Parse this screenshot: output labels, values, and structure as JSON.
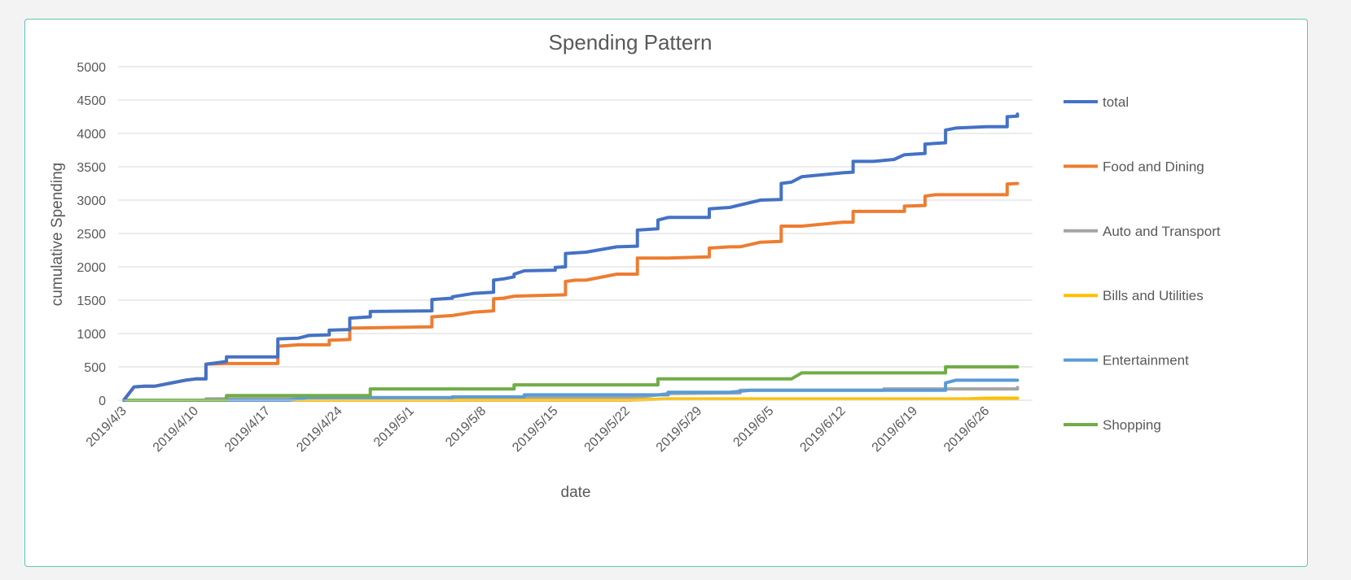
{
  "chart_data": {
    "type": "line",
    "title": "Spending Pattern",
    "xlabel": "date",
    "ylabel": "cumulative Spending",
    "ylim": [
      0,
      5000
    ],
    "yticks": [
      0,
      500,
      1000,
      1500,
      2000,
      2500,
      3000,
      3500,
      4000,
      4500,
      5000
    ],
    "x_axis_type": "date",
    "xlim": [
      "2019-04-03",
      "2019-06-30"
    ],
    "xtick_dates": [
      "2019-04-03",
      "2019-04-10",
      "2019-04-17",
      "2019-04-24",
      "2019-05-01",
      "2019-05-08",
      "2019-05-15",
      "2019-05-22",
      "2019-05-29",
      "2019-06-05",
      "2019-06-12",
      "2019-06-19",
      "2019-06-26"
    ],
    "xtick_labels": [
      "2019/4/3",
      "2019/4/10",
      "2019/4/17",
      "2019/4/24",
      "2019/5/1",
      "2019/5/8",
      "2019/5/15",
      "2019/5/22",
      "2019/5/29",
      "2019/6/5",
      "2019/6/12",
      "2019/6/19",
      "2019/6/26"
    ],
    "grid": "horizontal",
    "legend_position": "right",
    "series": [
      {
        "name": "total",
        "color": "#4472c4",
        "points": [
          [
            "2019-04-03",
            0
          ],
          [
            "2019-04-04",
            200
          ],
          [
            "2019-04-05",
            210
          ],
          [
            "2019-04-06",
            210
          ],
          [
            "2019-04-08",
            270
          ],
          [
            "2019-04-09",
            300
          ],
          [
            "2019-04-10",
            320
          ],
          [
            "2019-04-11",
            320
          ],
          [
            "2019-04-11",
            540
          ],
          [
            "2019-04-12",
            560
          ],
          [
            "2019-04-13",
            580
          ],
          [
            "2019-04-13",
            650
          ],
          [
            "2019-04-18",
            650
          ],
          [
            "2019-04-18",
            920
          ],
          [
            "2019-04-20",
            930
          ],
          [
            "2019-04-21",
            970
          ],
          [
            "2019-04-23",
            980
          ],
          [
            "2019-04-23",
            1050
          ],
          [
            "2019-04-25",
            1060
          ],
          [
            "2019-04-25",
            1230
          ],
          [
            "2019-04-27",
            1250
          ],
          [
            "2019-04-27",
            1330
          ],
          [
            "2019-05-03",
            1340
          ],
          [
            "2019-05-03",
            1510
          ],
          [
            "2019-05-05",
            1530
          ],
          [
            "2019-05-05",
            1550
          ],
          [
            "2019-05-07",
            1600
          ],
          [
            "2019-05-09",
            1620
          ],
          [
            "2019-05-09",
            1800
          ],
          [
            "2019-05-10",
            1820
          ],
          [
            "2019-05-11",
            1850
          ],
          [
            "2019-05-11",
            1890
          ],
          [
            "2019-05-12",
            1940
          ],
          [
            "2019-05-15",
            1950
          ],
          [
            "2019-05-15",
            1990
          ],
          [
            "2019-05-16",
            2000
          ],
          [
            "2019-05-16",
            2200
          ],
          [
            "2019-05-18",
            2220
          ],
          [
            "2019-05-21",
            2300
          ],
          [
            "2019-05-23",
            2310
          ],
          [
            "2019-05-23",
            2550
          ],
          [
            "2019-05-25",
            2570
          ],
          [
            "2019-05-25",
            2700
          ],
          [
            "2019-05-26",
            2740
          ],
          [
            "2019-05-30",
            2740
          ],
          [
            "2019-05-30",
            2870
          ],
          [
            "2019-06-01",
            2890
          ],
          [
            "2019-06-04",
            3000
          ],
          [
            "2019-06-06",
            3010
          ],
          [
            "2019-06-06",
            3250
          ],
          [
            "2019-06-07",
            3270
          ],
          [
            "2019-06-08",
            3350
          ],
          [
            "2019-06-12",
            3410
          ],
          [
            "2019-06-13",
            3420
          ],
          [
            "2019-06-13",
            3580
          ],
          [
            "2019-06-15",
            3580
          ],
          [
            "2019-06-17",
            3610
          ],
          [
            "2019-06-18",
            3680
          ],
          [
            "2019-06-20",
            3700
          ],
          [
            "2019-06-20",
            3840
          ],
          [
            "2019-06-22",
            3860
          ],
          [
            "2019-06-22",
            4050
          ],
          [
            "2019-06-23",
            4080
          ],
          [
            "2019-06-26",
            4100
          ],
          [
            "2019-06-28",
            4100
          ],
          [
            "2019-06-28",
            4250
          ],
          [
            "2019-06-29",
            4260
          ],
          [
            "2019-06-29",
            4290
          ]
        ]
      },
      {
        "name": "Food and Dining",
        "color": "#ed7d31",
        "points": [
          [
            "2019-04-03",
            0
          ],
          [
            "2019-04-04",
            200
          ],
          [
            "2019-04-05",
            210
          ],
          [
            "2019-04-06",
            210
          ],
          [
            "2019-04-08",
            270
          ],
          [
            "2019-04-09",
            300
          ],
          [
            "2019-04-10",
            320
          ],
          [
            "2019-04-11",
            320
          ],
          [
            "2019-04-11",
            540
          ],
          [
            "2019-04-13",
            550
          ],
          [
            "2019-04-18",
            550
          ],
          [
            "2019-04-18",
            810
          ],
          [
            "2019-04-20",
            830
          ],
          [
            "2019-04-23",
            830
          ],
          [
            "2019-04-23",
            900
          ],
          [
            "2019-04-25",
            910
          ],
          [
            "2019-04-25",
            1080
          ],
          [
            "2019-05-03",
            1100
          ],
          [
            "2019-05-03",
            1250
          ],
          [
            "2019-05-05",
            1270
          ],
          [
            "2019-05-07",
            1320
          ],
          [
            "2019-05-09",
            1340
          ],
          [
            "2019-05-09",
            1520
          ],
          [
            "2019-05-10",
            1530
          ],
          [
            "2019-05-11",
            1560
          ],
          [
            "2019-05-16",
            1580
          ],
          [
            "2019-05-16",
            1780
          ],
          [
            "2019-05-17",
            1800
          ],
          [
            "2019-05-18",
            1800
          ],
          [
            "2019-05-21",
            1890
          ],
          [
            "2019-05-23",
            1890
          ],
          [
            "2019-05-23",
            2130
          ],
          [
            "2019-05-26",
            2130
          ],
          [
            "2019-05-30",
            2150
          ],
          [
            "2019-05-30",
            2280
          ],
          [
            "2019-06-01",
            2300
          ],
          [
            "2019-06-02",
            2300
          ],
          [
            "2019-06-04",
            2370
          ],
          [
            "2019-06-06",
            2380
          ],
          [
            "2019-06-06",
            2610
          ],
          [
            "2019-06-08",
            2610
          ],
          [
            "2019-06-12",
            2670
          ],
          [
            "2019-06-13",
            2670
          ],
          [
            "2019-06-13",
            2830
          ],
          [
            "2019-06-18",
            2830
          ],
          [
            "2019-06-18",
            2910
          ],
          [
            "2019-06-20",
            2920
          ],
          [
            "2019-06-20",
            3060
          ],
          [
            "2019-06-21",
            3080
          ],
          [
            "2019-06-28",
            3080
          ],
          [
            "2019-06-28",
            3240
          ],
          [
            "2019-06-29",
            3250
          ]
        ]
      },
      {
        "name": "Auto and Transport",
        "color": "#a5a5a5",
        "points": [
          [
            "2019-04-03",
            0
          ],
          [
            "2019-04-11",
            0
          ],
          [
            "2019-04-11",
            20
          ],
          [
            "2019-04-20",
            30
          ],
          [
            "2019-05-23",
            40
          ],
          [
            "2019-05-26",
            100
          ],
          [
            "2019-06-02",
            110
          ],
          [
            "2019-06-02",
            150
          ],
          [
            "2019-06-16",
            150
          ],
          [
            "2019-06-16",
            170
          ],
          [
            "2019-06-29",
            170
          ],
          [
            "2019-06-29",
            190
          ]
        ]
      },
      {
        "name": "Bills and Utilities",
        "color": "#ffc000",
        "points": [
          [
            "2019-04-03",
            0
          ],
          [
            "2019-04-23",
            0
          ],
          [
            "2019-05-22",
            0
          ],
          [
            "2019-05-26",
            20
          ],
          [
            "2019-06-24",
            20
          ],
          [
            "2019-06-26",
            30
          ],
          [
            "2019-06-29",
            30
          ]
        ]
      },
      {
        "name": "Entertainment",
        "color": "#5b9bd5",
        "points": [
          [
            "2019-04-03",
            0
          ],
          [
            "2019-04-19",
            0
          ],
          [
            "2019-04-21",
            40
          ],
          [
            "2019-05-05",
            40
          ],
          [
            "2019-05-05",
            50
          ],
          [
            "2019-05-12",
            50
          ],
          [
            "2019-05-12",
            80
          ],
          [
            "2019-05-26",
            80
          ],
          [
            "2019-05-26",
            120
          ],
          [
            "2019-06-01",
            120
          ],
          [
            "2019-06-03",
            150
          ],
          [
            "2019-06-22",
            150
          ],
          [
            "2019-06-22",
            260
          ],
          [
            "2019-06-23",
            300
          ],
          [
            "2019-06-29",
            300
          ]
        ]
      },
      {
        "name": "Shopping",
        "color": "#70ad47",
        "points": [
          [
            "2019-04-03",
            0
          ],
          [
            "2019-04-13",
            0
          ],
          [
            "2019-04-13",
            70
          ],
          [
            "2019-04-27",
            70
          ],
          [
            "2019-04-27",
            170
          ],
          [
            "2019-05-11",
            170
          ],
          [
            "2019-05-11",
            230
          ],
          [
            "2019-05-25",
            230
          ],
          [
            "2019-05-25",
            320
          ],
          [
            "2019-06-07",
            320
          ],
          [
            "2019-06-08",
            410
          ],
          [
            "2019-06-22",
            410
          ],
          [
            "2019-06-22",
            500
          ],
          [
            "2019-06-29",
            500
          ]
        ]
      }
    ]
  }
}
